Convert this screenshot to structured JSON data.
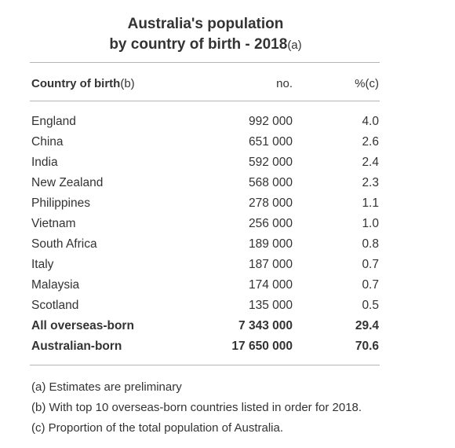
{
  "title": {
    "line1": "Australia's population",
    "line2": "by country of birth - 2018",
    "line2_note": "(a)"
  },
  "header": {
    "country": "Country of birth",
    "country_note": "(b)",
    "number": "no.",
    "percent": "%(c)"
  },
  "rows": [
    {
      "country": "England",
      "number": "992 000",
      "percent": "4.0"
    },
    {
      "country": "China",
      "number": "651 000",
      "percent": "2.6"
    },
    {
      "country": "India",
      "number": "592 000",
      "percent": "2.4"
    },
    {
      "country": "New Zealand",
      "number": "568 000",
      "percent": "2.3"
    },
    {
      "country": "Philippines",
      "number": "278 000",
      "percent": "1.1"
    },
    {
      "country": "Vietnam",
      "number": "256 000",
      "percent": "1.0"
    },
    {
      "country": "South Africa",
      "number": "189 000",
      "percent": "0.8"
    },
    {
      "country": "Italy",
      "number": "187 000",
      "percent": "0.7"
    },
    {
      "country": "Malaysia",
      "number": "174 000",
      "percent": "0.7"
    },
    {
      "country": "Scotland",
      "number": "135 000",
      "percent": "0.5"
    }
  ],
  "totals": [
    {
      "country": "All overseas-born",
      "number": "7 343 000",
      "percent": "29.4"
    },
    {
      "country": "Australian-born",
      "number": "17 650 000",
      "percent": "70.6"
    }
  ],
  "notes": [
    "(a) Estimates are preliminary",
    "(b) With top 10 overseas-born countries listed in order for 2018.",
    "(c) Proportion of the total population of Australia."
  ]
}
